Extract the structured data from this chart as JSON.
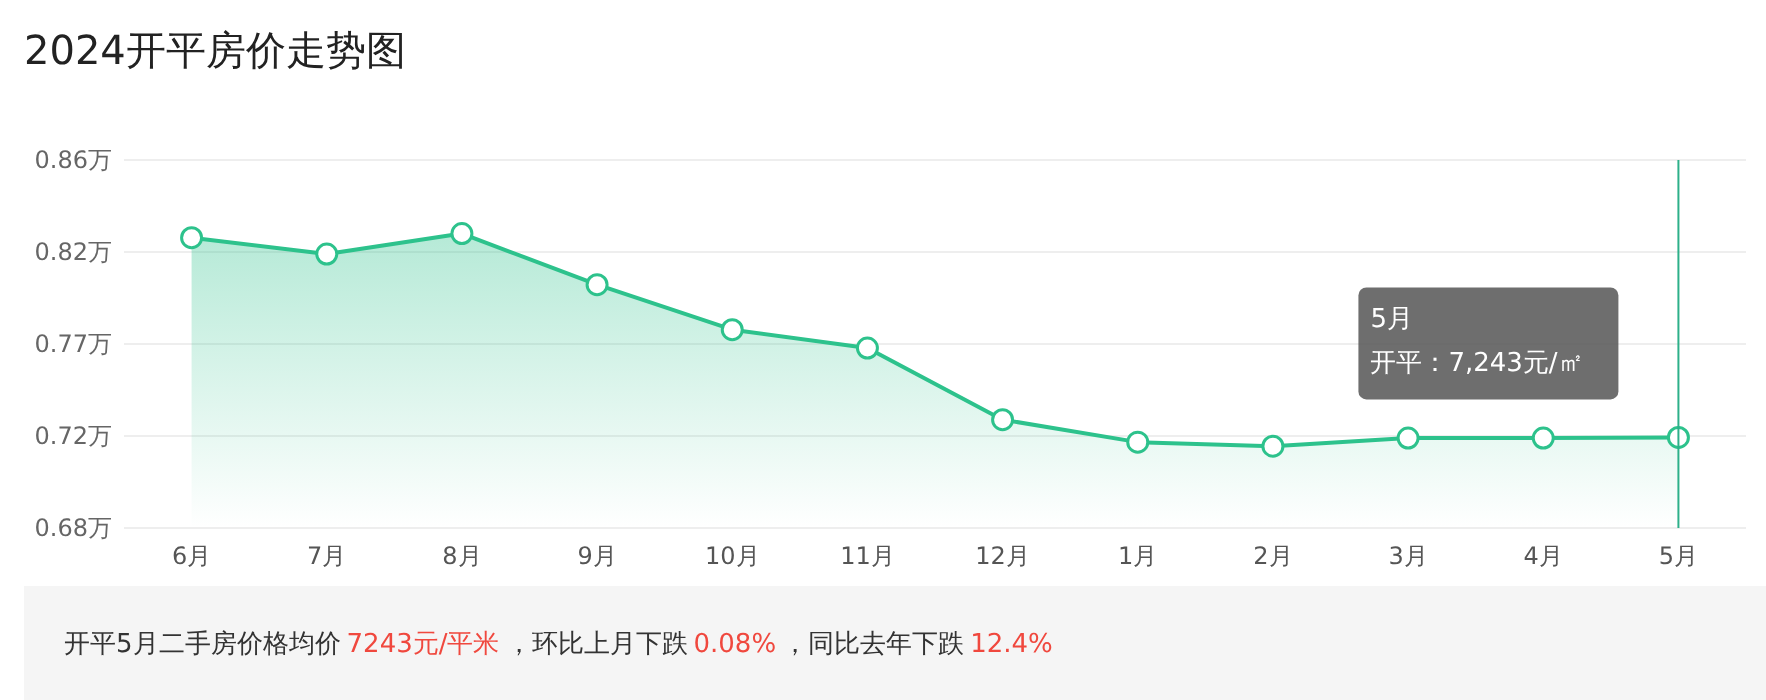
{
  "chart_data": {
    "type": "area",
    "title": "2024开平房价走势图",
    "categories": [
      "6月",
      "7月",
      "8月",
      "9月",
      "10月",
      "11月",
      "12月",
      "1月",
      "2月",
      "3月",
      "4月",
      "5月"
    ],
    "series": [
      {
        "color": "#2dc28c",
        "values": [
          0.822,
          0.814,
          0.824,
          0.799,
          0.777,
          0.768,
          0.733,
          0.722,
          0.72,
          0.724,
          0.724,
          0.7243
        ]
      }
    ],
    "ylim": [
      0.68,
      0.86
    ],
    "yticks": [
      {
        "value": 0.68,
        "label": "0.68万"
      },
      {
        "value": 0.725,
        "label": "0.72万"
      },
      {
        "value": 0.77,
        "label": "0.77万"
      },
      {
        "value": 0.815,
        "label": "0.82万"
      },
      {
        "value": 0.86,
        "label": "0.86万"
      }
    ],
    "grid": "y",
    "marker": "circle",
    "ref_lines": [
      {
        "axis": "x",
        "value": "5月",
        "color": "#2db08a"
      }
    ],
    "annotations": [
      "5月",
      "开平：7,243元/㎡",
      "开平5月二手房价格均价",
      "7243元/平米",
      "，环比上月下跌",
      "0.08%",
      "，同比去年下跌",
      "12.4%"
    ]
  }
}
